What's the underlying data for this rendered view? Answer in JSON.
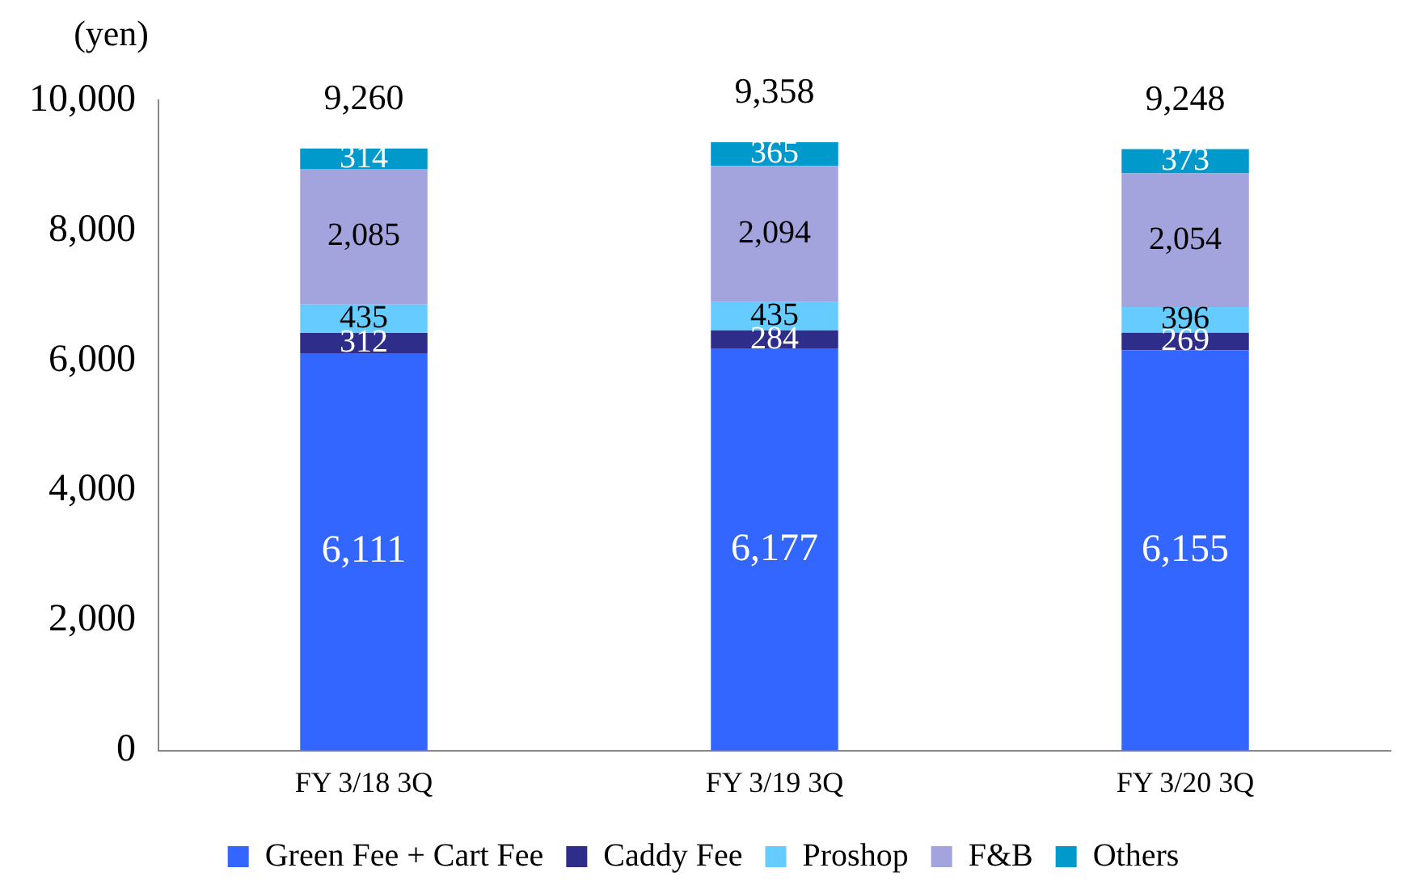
{
  "chart_data": {
    "type": "bar",
    "stacked": true,
    "ylabel": "(yen)",
    "categories": [
      "FY 3/18 3Q",
      "FY 3/19 3Q",
      "FY 3/20 3Q"
    ],
    "series": [
      {
        "name": "Green Fee + Cart Fee",
        "color": "#3366ff",
        "values": [
          6111,
          6177,
          6155
        ],
        "value_labels": [
          "6,111",
          "6,177",
          "6,155"
        ]
      },
      {
        "name": "Caddy Fee",
        "color": "#2e2e8a",
        "values": [
          312,
          284,
          269
        ],
        "value_labels": [
          "312",
          "284",
          "269"
        ]
      },
      {
        "name": "Proshop",
        "color": "#66ccff",
        "values": [
          435,
          435,
          396
        ],
        "value_labels": [
          "435",
          "435",
          "396"
        ]
      },
      {
        "name": "F&B",
        "color": "#a3a3dd",
        "values": [
          2085,
          2094,
          2054
        ],
        "value_labels": [
          "2,085",
          "2,094",
          "2,054"
        ]
      },
      {
        "name": "Others",
        "color": "#0099cc",
        "values": [
          314,
          365,
          373
        ],
        "value_labels": [
          "314",
          "365",
          "373"
        ]
      }
    ],
    "totals": [
      "9,260",
      "9,358",
      "9,248"
    ],
    "ylim": [
      0,
      10000
    ],
    "yticks": [
      0,
      {
        "value": 2000,
        "label": "2,000"
      },
      {
        "value": 4000,
        "label": "4,000"
      },
      {
        "value": 6000,
        "label": "6,000"
      },
      {
        "value": 8000,
        "label": "8,000"
      },
      {
        "value": 10000,
        "label": "10,000"
      }
    ],
    "grid": false,
    "legend": "bottom"
  }
}
